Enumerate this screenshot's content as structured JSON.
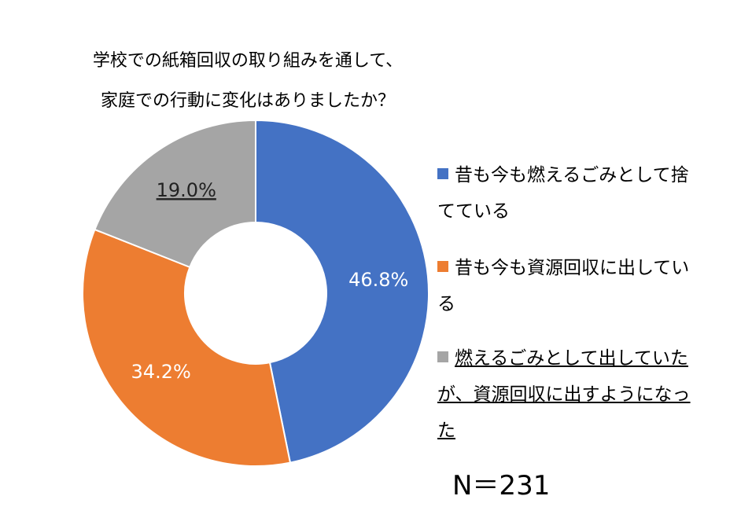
{
  "chart_data": {
    "type": "donut",
    "title": [
      "学校での紙箱回収の取り組みを通して、",
      "家庭での行動に変化はありましたか？"
    ],
    "categories": [
      "昔も今も燃えるごみとして捨てている",
      "昔も今も資源回収に出している",
      "燃えるごみとして出していたが、資源回収に出すようになった"
    ],
    "values": [
      46.8,
      34.2,
      19.0
    ],
    "value_labels": [
      "46.8%",
      "34.2%",
      "19.0%"
    ],
    "colors": [
      "#4472c4",
      "#ed7d31",
      "#a5a5a5"
    ],
    "underline": [
      false,
      false,
      true
    ],
    "annotation": "N＝231",
    "legend": "right"
  }
}
